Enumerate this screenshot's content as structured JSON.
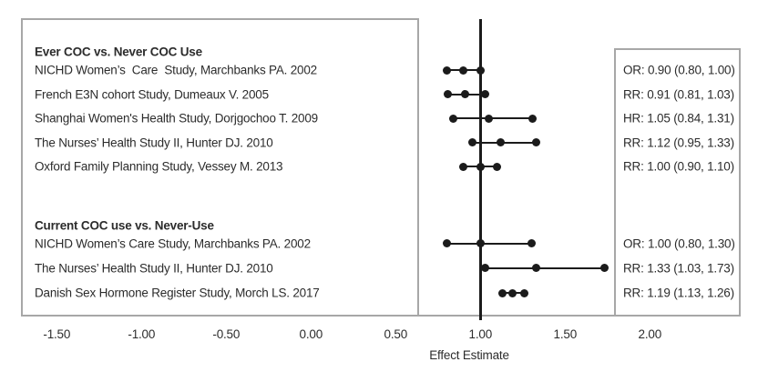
{
  "chart_data": {
    "type": "forest",
    "title": "",
    "xlabel": "Effect Estimate",
    "x_ticks": [
      "-1.50",
      "-1.00",
      "-0.50",
      "0.00",
      "0.50",
      "1.00",
      "1.50",
      "2.00"
    ],
    "x_tick_values": [
      -1.5,
      -1.0,
      -0.5,
      0.0,
      0.5,
      1.0,
      1.5,
      2.0
    ],
    "x_range": [
      -1.5,
      2.0
    ],
    "reference_value": 1.0,
    "grid": false,
    "legend": "none",
    "colors": {
      "marker": "#1b1b1b",
      "reference_line": "#1b1b1b",
      "border": "#a7a7a7",
      "text": "#2c2c2c",
      "background": "#ffffff"
    },
    "groups": [
      {
        "header": "Ever COC vs. Never COC Use",
        "rows": [
          {
            "label": "NICHD Women’s  Care  Study, Marchbanks PA. 2002",
            "measure": "OR",
            "estimate": 0.9,
            "ci_low": 0.8,
            "ci_high": 1.0,
            "value_text": "OR: 0.90 (0.80, 1.00)"
          },
          {
            "label": "French E3N cohort Study, Dumeaux V. 2005",
            "measure": "RR",
            "estimate": 0.91,
            "ci_low": 0.81,
            "ci_high": 1.03,
            "value_text": "RR: 0.91 (0.81, 1.03)"
          },
          {
            "label": "Shanghai Women's Health Study, Dorjgochoo T. 2009",
            "measure": "HR",
            "estimate": 1.05,
            "ci_low": 0.84,
            "ci_high": 1.31,
            "value_text": "HR: 1.05 (0.84, 1.31)"
          },
          {
            "label": "The Nurses’ Health Study II, Hunter DJ. 2010",
            "measure": "RR",
            "estimate": 1.12,
            "ci_low": 0.95,
            "ci_high": 1.33,
            "value_text": "RR: 1.12 (0.95, 1.33)"
          },
          {
            "label": "Oxford Family Planning Study, Vessey M. 2013",
            "measure": "RR",
            "estimate": 1.0,
            "ci_low": 0.9,
            "ci_high": 1.1,
            "value_text": "RR: 1.00 (0.90, 1.10)"
          }
        ]
      },
      {
        "header": "Current COC use vs. Never-Use",
        "rows": [
          {
            "label": "NICHD Women’s Care Study, Marchbanks PA. 2002",
            "measure": "OR",
            "estimate": 1.0,
            "ci_low": 0.8,
            "ci_high": 1.3,
            "value_text": "OR: 1.00 (0.80, 1.30)"
          },
          {
            "label": "The Nurses’ Health Study II, Hunter DJ. 2010",
            "measure": "RR",
            "estimate": 1.33,
            "ci_low": 1.03,
            "ci_high": 1.73,
            "value_text": "RR: 1.33 (1.03, 1.73)"
          },
          {
            "label": "Danish Sex Hormone Register Study, Morch LS. 2017",
            "measure": "RR",
            "estimate": 1.19,
            "ci_low": 1.13,
            "ci_high": 1.26,
            "value_text": "RR: 1.19 (1.13, 1.26)"
          }
        ]
      }
    ]
  }
}
